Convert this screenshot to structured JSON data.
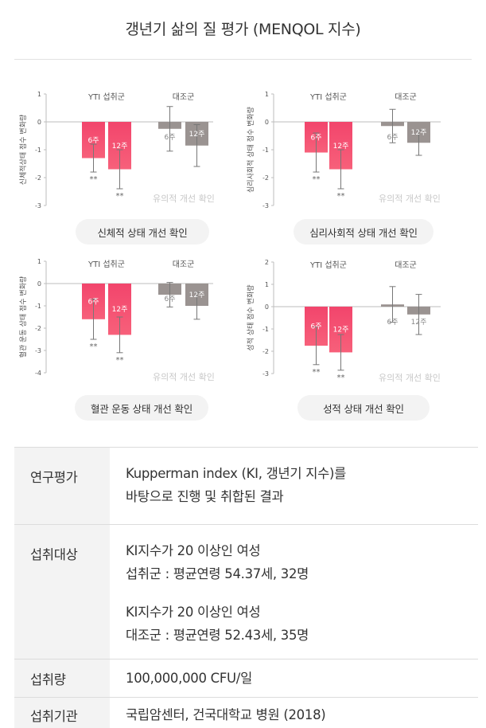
{
  "title": "갱년기 삶의 질 평가 (MENQOL 지수)",
  "chart_data": [
    {
      "type": "bar",
      "title": "",
      "ylabel": "신체적상태 점수 변화량",
      "ylim": [
        -3,
        1
      ],
      "ticks": [
        1,
        0,
        -1,
        -2,
        -3
      ],
      "groups": [
        "YTI 섭취군",
        "대조군"
      ],
      "categories": [
        "6주",
        "12주"
      ],
      "series": [
        {
          "group": "YTI 섭취군",
          "values": [
            -1.3,
            -1.7
          ],
          "errors": [
            0.5,
            0.7
          ],
          "significance": [
            "**",
            "**"
          ],
          "color": "#f24e6a"
        },
        {
          "group": "대조군",
          "values": [
            -0.25,
            -0.85
          ],
          "errors": [
            0.8,
            0.75
          ],
          "significance": [
            "",
            ""
          ],
          "color": "#9a9391"
        }
      ],
      "annotation": "유의적 개선 확인",
      "caption": "신체적 상태 개선 확인"
    },
    {
      "type": "bar",
      "title": "",
      "ylabel": "심리사회적 상태 점수 변화량",
      "ylim": [
        -3,
        1
      ],
      "ticks": [
        1,
        0,
        -1,
        -2,
        -3
      ],
      "groups": [
        "YTI 섭취군",
        "대조군"
      ],
      "categories": [
        "6주",
        "12주"
      ],
      "series": [
        {
          "group": "YTI 섭취군",
          "values": [
            -1.1,
            -1.7
          ],
          "errors": [
            0.7,
            0.7
          ],
          "significance": [
            "**",
            "**"
          ],
          "color": "#f24e6a"
        },
        {
          "group": "대조군",
          "values": [
            -0.15,
            -0.75
          ],
          "errors": [
            0.6,
            0.45
          ],
          "significance": [
            "",
            ""
          ],
          "color": "#9a9391"
        }
      ],
      "annotation": "유의적 개선 확인",
      "caption": "심리사회적 상태 개선 확인"
    },
    {
      "type": "bar",
      "title": "",
      "ylabel": "혈관 운동 상태 점수 변화량",
      "ylim": [
        -4,
        1
      ],
      "ticks": [
        1,
        0,
        -1,
        -2,
        -3,
        -4
      ],
      "groups": [
        "YTI 섭취군",
        "대조군"
      ],
      "categories": [
        "6주",
        "12주"
      ],
      "series": [
        {
          "group": "YTI 섭취군",
          "values": [
            -1.6,
            -2.3
          ],
          "errors": [
            0.9,
            0.8
          ],
          "significance": [
            "**",
            "**"
          ],
          "color": "#f24e6a"
        },
        {
          "group": "대조군",
          "values": [
            -0.5,
            -1.0
          ],
          "errors": [
            0.55,
            0.6
          ],
          "significance": [
            "",
            ""
          ],
          "color": "#9a9391"
        }
      ],
      "annotation": "유의적 개선 확인",
      "caption": "혈관 운동 상태 개선 확인"
    },
    {
      "type": "bar",
      "title": "",
      "ylabel": "성적 상태 점수 변화량",
      "ylim": [
        -3,
        2
      ],
      "ticks": [
        2,
        1,
        0,
        -1,
        -2,
        -3
      ],
      "groups": [
        "YTI 섭취군",
        "대조군"
      ],
      "categories": [
        "6주",
        "12주"
      ],
      "series": [
        {
          "group": "YTI 섭취군",
          "values": [
            -1.75,
            -2.05
          ],
          "errors": [
            0.85,
            0.8
          ],
          "significance": [
            "**",
            "**"
          ],
          "color": "#f24e6a"
        },
        {
          "group": "대조군",
          "values": [
            0.1,
            -0.35
          ],
          "errors": [
            0.8,
            0.9
          ],
          "significance": [
            "",
            ""
          ],
          "color": "#9a9391"
        }
      ],
      "annotation": "유의적 개선 확인",
      "caption": "성적 상태 개선 확인"
    }
  ],
  "info": [
    {
      "label": "연구평가",
      "lines": [
        "Kupperman index (KI, 갱년기 지수)를",
        "바탕으로 진행 및 취합된 결과"
      ]
    },
    {
      "label": "섭취대상",
      "lines": [
        "KI지수가 20 이상인 여성",
        "섭취군 : 평균연령 54.37세, 32명",
        "KI지수가 20 이상인 여성",
        "대조군 : 평균연령 52.43세, 35명"
      ]
    },
    {
      "label": "섭취량",
      "lines": [
        "100,000,000 CFU/일"
      ]
    },
    {
      "label": "섭취기관",
      "lines": [
        "국립암센터, 건국대학교 병원 (2018)"
      ]
    }
  ]
}
